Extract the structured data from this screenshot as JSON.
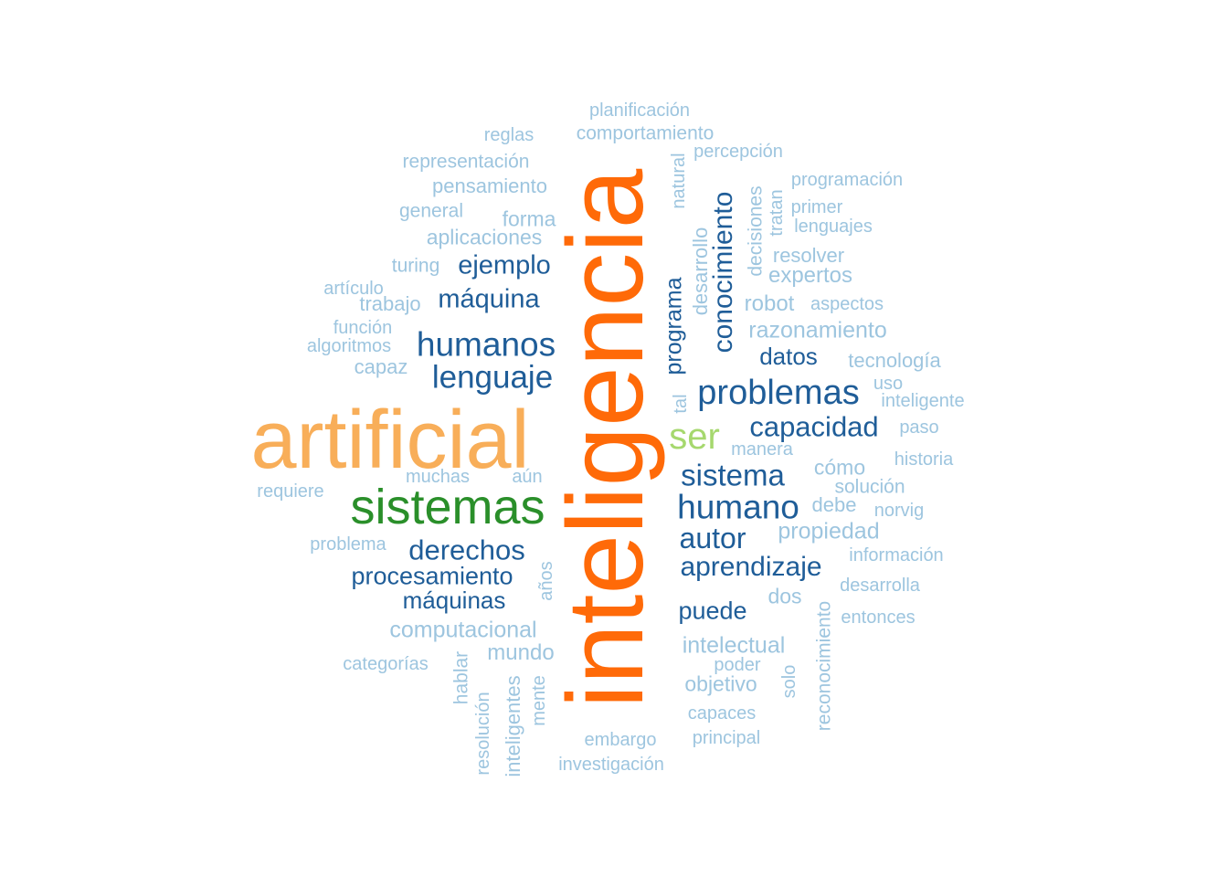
{
  "colors": {
    "orange": "#ff6a08",
    "peach": "#f8ae59",
    "green": "#2a8f2a",
    "light_green": "#a6d86e",
    "dark_blue": "#1f5d98",
    "light_blue": "#9dc5df"
  },
  "words": {
    "inteligencia": "inteligencia",
    "artificial": "artificial",
    "sistemas": "sistemas",
    "ser": "ser",
    "problemas": "problemas",
    "humanos": "humanos",
    "humano": "humano",
    "lenguaje": "lenguaje",
    "sistema": "sistema",
    "capacidad": "capacidad",
    "conocimiento": "conocimiento",
    "derechos": "derechos",
    "aprendizaje": "aprendizaje",
    "autor": "autor",
    "ejemplo": "ejemplo",
    "maquina": "máquina",
    "procesamiento": "procesamiento",
    "maquinas": "máquinas",
    "programa": "programa",
    "puede": "puede",
    "datos": "datos",
    "propiedad": "propiedad",
    "intelectual": "intelectual",
    "razonamiento": "razonamiento",
    "computacional": "computacional",
    "mundo": "mundo",
    "objetivo": "objetivo",
    "como": "cómo",
    "dos": "dos",
    "expertos": "expertos",
    "robot": "robot",
    "forma": "forma",
    "aplicaciones": "aplicaciones",
    "tecnologia": "tecnología",
    "pensamiento": "pensamiento",
    "representacion": "representación",
    "comportamiento": "comportamiento",
    "planificacion": "planificación",
    "reglas": "reglas",
    "percepcion": "percepción",
    "programacion": "programación",
    "natural": "natural",
    "desarrollo": "desarrollo",
    "decisiones": "decisiones",
    "tratan": "tratan",
    "primer": "primer",
    "lenguajes": "lenguajes",
    "resolver": "resolver",
    "aspectos": "aspectos",
    "general": "general",
    "turing": "turing",
    "articulo": "artículo",
    "trabajo": "trabajo",
    "funcion": "función",
    "algoritmos": "algoritmos",
    "capaz": "capaz",
    "uso": "uso",
    "inteligente": "inteligente",
    "paso": "paso",
    "manera": "manera",
    "tal": "tal",
    "historia": "historia",
    "solucion": "solución",
    "debe": "debe",
    "norvig": "norvig",
    "muchas": "muchas",
    "aun": "aún",
    "requiere": "requiere",
    "problema": "problema",
    "anos": "años",
    "informacion": "información",
    "desarrolla": "desarrolla",
    "entonces": "entonces",
    "categorias": "categorías",
    "hablar": "hablar",
    "resolucion": "resolución",
    "inteligentes": "inteligentes",
    "mente": "mente",
    "poder": "poder",
    "solo": "solo",
    "reconocimiento": "reconocimiento",
    "capaces": "capaces",
    "principal": "principal",
    "embargo": "embargo",
    "investigacion": "investigación"
  }
}
